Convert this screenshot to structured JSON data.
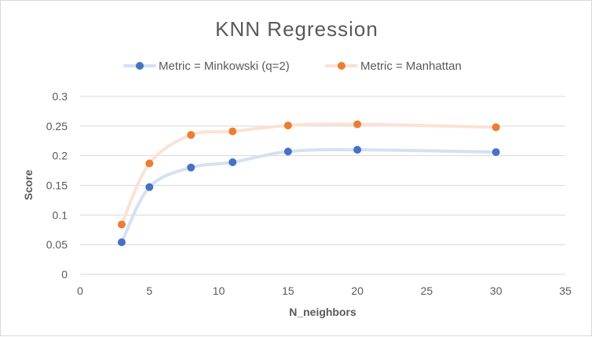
{
  "chart_data": {
    "type": "scatter",
    "title": "KNN Regression",
    "xlabel": "N_neighbors",
    "ylabel": "Score",
    "xlim": [
      0,
      35
    ],
    "ylim": [
      0,
      0.3
    ],
    "x_ticks": [
      "0",
      "5",
      "10",
      "15",
      "20",
      "25",
      "30",
      "35"
    ],
    "y_ticks": [
      "0",
      "0.05",
      "0.1",
      "0.15",
      "0.2",
      "0.25",
      "0.3"
    ],
    "grid": "horizontal",
    "legend_position": "top",
    "series": [
      {
        "name": "Metric = Minkowski (q=2)",
        "marker_color": "#4472c4",
        "line_color": "#d6e0f2",
        "x": [
          3,
          5,
          8,
          11,
          15,
          20,
          30
        ],
        "y": [
          0.054,
          0.147,
          0.18,
          0.189,
          0.207,
          0.21,
          0.206
        ]
      },
      {
        "name": "Metric = Manhattan",
        "marker_color": "#ed7d31",
        "line_color": "#fbe2d3",
        "x": [
          3,
          5,
          8,
          11,
          15,
          20,
          30
        ],
        "y": [
          0.084,
          0.187,
          0.235,
          0.241,
          0.251,
          0.253,
          0.248
        ]
      }
    ]
  }
}
